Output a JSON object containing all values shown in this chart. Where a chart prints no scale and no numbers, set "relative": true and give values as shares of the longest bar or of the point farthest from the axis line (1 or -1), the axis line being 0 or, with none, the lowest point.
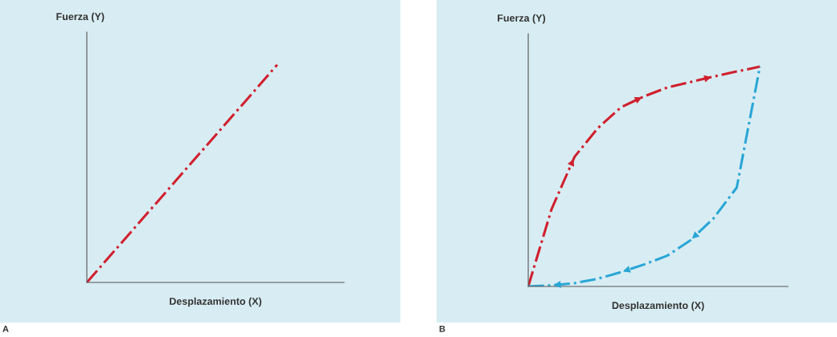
{
  "chart_data": [
    {
      "type": "line",
      "relative": true,
      "xlabel": "Desplazamiento (X)",
      "ylabel": "Fuerza (Y)",
      "line_style": "dashed",
      "annotations": [
        "A"
      ],
      "categories": [
        null,
        null,
        null
      ],
      "series": [
        {
          "color": "#d0202e",
          "values": [
            0,
            0.5,
            1
          ]
        }
      ]
    },
    {
      "type": "line",
      "relative": true,
      "xlabel": "Desplazamiento (X)",
      "ylabel": "Fuerza (Y)",
      "line_style": "dashed",
      "annotations": [
        "B"
      ],
      "categories": [
        null,
        null,
        null,
        null,
        null,
        null,
        null,
        null,
        null,
        null,
        null
      ],
      "series": [
        {
          "color": "#d0202e",
          "values": [
            0,
            0.35,
            0.59,
            0.72,
            0.815,
            0.865,
            0.905,
            0.93,
            0.955,
            0.978,
            1
          ]
        },
        {
          "color": "#2aa6d6",
          "values": [
            0,
            0.005,
            0.015,
            0.035,
            0.065,
            0.1,
            0.14,
            0.21,
            0.31,
            0.45,
            1
          ]
        }
      ]
    }
  ]
}
